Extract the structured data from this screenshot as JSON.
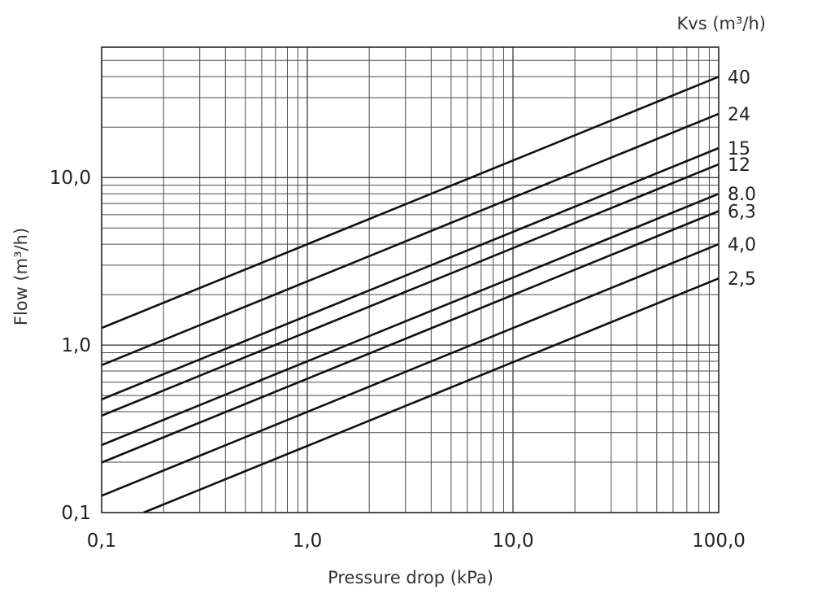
{
  "chart_data": {
    "type": "line",
    "xlabel": "Pressure drop (kPa)",
    "ylabel": "Flow (m³/h)",
    "legend_title": "Kvs (m³/h)",
    "x_scale": "log",
    "y_scale": "log",
    "xlim": [
      0.1,
      100
    ],
    "ylim": [
      0.1,
      60
    ],
    "x_ticks": [
      {
        "value": 0.1,
        "label": "0,1"
      },
      {
        "value": 1,
        "label": "1,0"
      },
      {
        "value": 10,
        "label": "10,0"
      },
      {
        "value": 100,
        "label": "100,0"
      }
    ],
    "y_ticks": [
      {
        "value": 0.1,
        "label": "0,1"
      },
      {
        "value": 1,
        "label": "1,0"
      },
      {
        "value": 10,
        "label": "10,0"
      }
    ],
    "grid": true,
    "legend_position": "right",
    "series": [
      {
        "name": "40",
        "kvs": 40,
        "x": [
          0.1,
          100
        ],
        "y": [
          1.265,
          40
        ]
      },
      {
        "name": "24",
        "kvs": 24,
        "x": [
          0.1,
          100
        ],
        "y": [
          0.759,
          24
        ]
      },
      {
        "name": "15",
        "kvs": 15,
        "x": [
          0.1,
          100
        ],
        "y": [
          0.474,
          15
        ]
      },
      {
        "name": "12",
        "kvs": 12,
        "x": [
          0.1,
          100
        ],
        "y": [
          0.379,
          12
        ]
      },
      {
        "name": "8.0",
        "kvs": 8,
        "x": [
          0.1,
          100
        ],
        "y": [
          0.253,
          8
        ]
      },
      {
        "name": "6,3",
        "kvs": 6.3,
        "x": [
          0.1,
          100
        ],
        "y": [
          0.199,
          6.3
        ]
      },
      {
        "name": "4,0",
        "kvs": 4,
        "x": [
          0.1,
          100
        ],
        "y": [
          0.126,
          4
        ]
      },
      {
        "name": "2,5",
        "kvs": 2.5,
        "x": [
          0.16,
          100
        ],
        "y": [
          0.1,
          2.5
        ]
      }
    ]
  },
  "colors": {
    "line": "#111111",
    "grid": "#4a4a4a",
    "background": "#ffffff"
  }
}
